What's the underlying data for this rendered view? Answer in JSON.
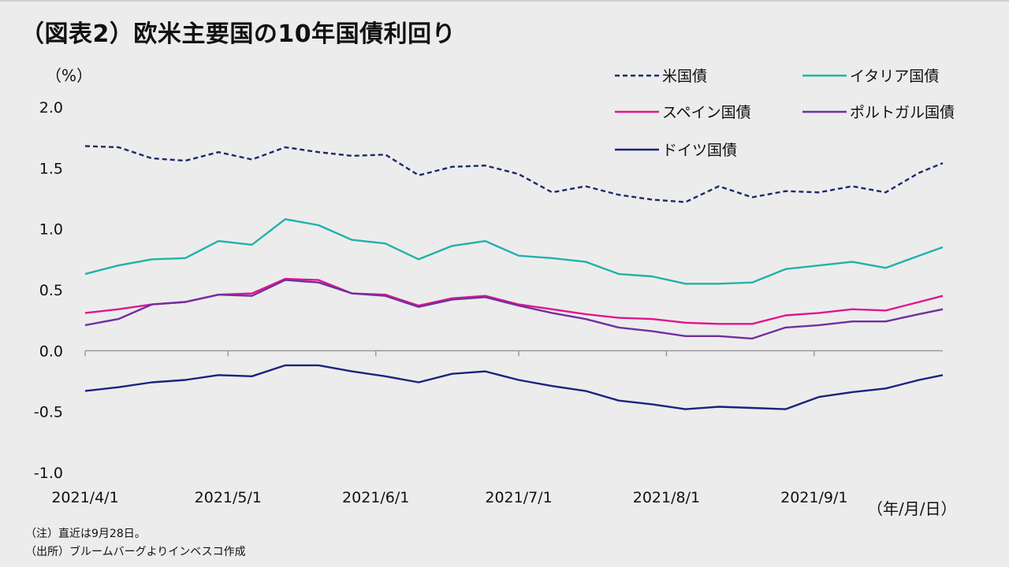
{
  "title": "（図表2）欧米主要国の10年国債利回り",
  "y_unit": "（%）",
  "x_unit": "（年/月/日）",
  "notes": [
    "（注）直近は9月28日。",
    "（出所）ブルームバーグよりインベスコ作成"
  ],
  "colors": {
    "negative_tick": "#e00000",
    "axis": "#9a9a9a"
  },
  "chart_data": {
    "type": "line",
    "xlabel": "",
    "ylabel": "",
    "ylim": [
      -1.0,
      2.0
    ],
    "yticks": [
      {
        "value": 2.0,
        "label": "2.0"
      },
      {
        "value": 1.5,
        "label": "1.5"
      },
      {
        "value": 1.0,
        "label": "1.0"
      },
      {
        "value": 0.5,
        "label": "0.5"
      },
      {
        "value": 0.0,
        "label": "0.0"
      },
      {
        "value": -0.5,
        "label": "-0.5"
      },
      {
        "value": -1.0,
        "label": "-1.0"
      }
    ],
    "xticks": [
      "2021/4/1",
      "2021/5/1",
      "2021/6/1",
      "2021/7/1",
      "2021/8/1",
      "2021/9/1"
    ],
    "x_range": [
      "2021/4/1",
      "2021/9/28"
    ],
    "grid": false,
    "legend_position": "top-right",
    "x": [
      "2021/4/1",
      "2021/4/8",
      "2021/4/15",
      "2021/4/22",
      "2021/4/29",
      "2021/5/6",
      "2021/5/13",
      "2021/5/20",
      "2021/5/27",
      "2021/6/3",
      "2021/6/10",
      "2021/6/17",
      "2021/6/24",
      "2021/7/1",
      "2021/7/8",
      "2021/7/15",
      "2021/7/22",
      "2021/7/29",
      "2021/8/5",
      "2021/8/12",
      "2021/8/19",
      "2021/8/26",
      "2021/9/2",
      "2021/9/9",
      "2021/9/16",
      "2021/9/23",
      "2021/9/28"
    ],
    "series": [
      {
        "name": "米国債",
        "color": "#1a2a6c",
        "dash": true,
        "values": [
          1.68,
          1.67,
          1.58,
          1.56,
          1.63,
          1.57,
          1.67,
          1.63,
          1.6,
          1.61,
          1.44,
          1.51,
          1.52,
          1.45,
          1.3,
          1.35,
          1.28,
          1.24,
          1.22,
          1.35,
          1.26,
          1.31,
          1.3,
          1.35,
          1.3,
          1.46,
          1.54
        ]
      },
      {
        "name": "イタリア国債",
        "color": "#20b2aa",
        "dash": false,
        "values": [
          0.63,
          0.7,
          0.75,
          0.76,
          0.9,
          0.87,
          1.08,
          1.03,
          0.91,
          0.88,
          0.75,
          0.86,
          0.9,
          0.78,
          0.76,
          0.73,
          0.63,
          0.61,
          0.55,
          0.55,
          0.56,
          0.67,
          0.7,
          0.73,
          0.68,
          0.78,
          0.85
        ]
      },
      {
        "name": "スペイン国債",
        "color": "#e0168c",
        "dash": false,
        "values": [
          0.31,
          0.34,
          0.38,
          0.4,
          0.46,
          0.47,
          0.59,
          0.58,
          0.47,
          0.46,
          0.37,
          0.43,
          0.45,
          0.38,
          0.34,
          0.3,
          0.27,
          0.26,
          0.23,
          0.22,
          0.22,
          0.29,
          0.31,
          0.34,
          0.33,
          0.4,
          0.45
        ]
      },
      {
        "name": "ポルトガル国債",
        "color": "#7030a0",
        "dash": false,
        "values": [
          0.21,
          0.26,
          0.38,
          0.4,
          0.46,
          0.45,
          0.58,
          0.56,
          0.47,
          0.45,
          0.36,
          0.42,
          0.44,
          0.37,
          0.31,
          0.26,
          0.19,
          0.16,
          0.12,
          0.12,
          0.1,
          0.19,
          0.21,
          0.24,
          0.24,
          0.3,
          0.34
        ]
      },
      {
        "name": "ドイツ国債",
        "color": "#1a237e",
        "dash": false,
        "values": [
          -0.33,
          -0.3,
          -0.26,
          -0.24,
          -0.2,
          -0.21,
          -0.12,
          -0.12,
          -0.17,
          -0.21,
          -0.26,
          -0.19,
          -0.17,
          -0.24,
          -0.29,
          -0.33,
          -0.41,
          -0.44,
          -0.48,
          -0.46,
          -0.47,
          -0.48,
          -0.38,
          -0.34,
          -0.31,
          -0.24,
          -0.2
        ]
      }
    ]
  }
}
